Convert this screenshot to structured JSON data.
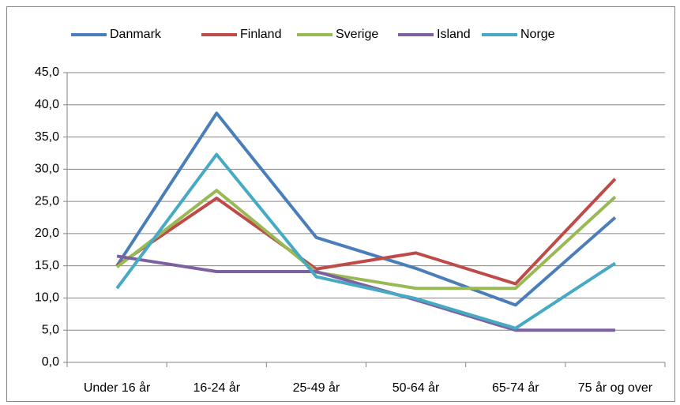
{
  "chart_data": {
    "type": "line",
    "categories": [
      "Under 16 år",
      "16-24 år",
      "25-49 år",
      "50-64 år",
      "65-74 år",
      "75 år og over"
    ],
    "series": [
      {
        "name": "Danmark",
        "color": "#4a7ebb",
        "values": [
          15.0,
          38.7,
          19.4,
          14.6,
          8.9,
          22.5
        ]
      },
      {
        "name": "Finland",
        "color": "#be4b48",
        "values": [
          15.0,
          25.5,
          14.5,
          17.0,
          12.2,
          28.5
        ]
      },
      {
        "name": "Sverige",
        "color": "#98b954",
        "values": [
          14.8,
          26.7,
          14.0,
          11.5,
          11.5,
          25.7
        ]
      },
      {
        "name": "Island",
        "color": "#7d60a0",
        "values": [
          16.5,
          14.1,
          14.1,
          9.7,
          5.0,
          5.0
        ]
      },
      {
        "name": "Norge",
        "color": "#46aac5",
        "values": [
          11.5,
          32.3,
          13.3,
          9.9,
          5.3,
          15.4
        ]
      }
    ],
    "ylim": [
      0,
      45
    ],
    "yticks": [
      {
        "value": 0,
        "label": "0,0"
      },
      {
        "value": 5,
        "label": "5,0"
      },
      {
        "value": 10,
        "label": "10,0"
      },
      {
        "value": 15,
        "label": "15,0"
      },
      {
        "value": 20,
        "label": "20,0"
      },
      {
        "value": 25,
        "label": "25,0"
      },
      {
        "value": 30,
        "label": "30,0"
      },
      {
        "value": 35,
        "label": "35,0"
      },
      {
        "value": 40,
        "label": "40,0"
      },
      {
        "value": 45,
        "label": "45,0"
      }
    ],
    "grid": true,
    "legend": "top"
  }
}
